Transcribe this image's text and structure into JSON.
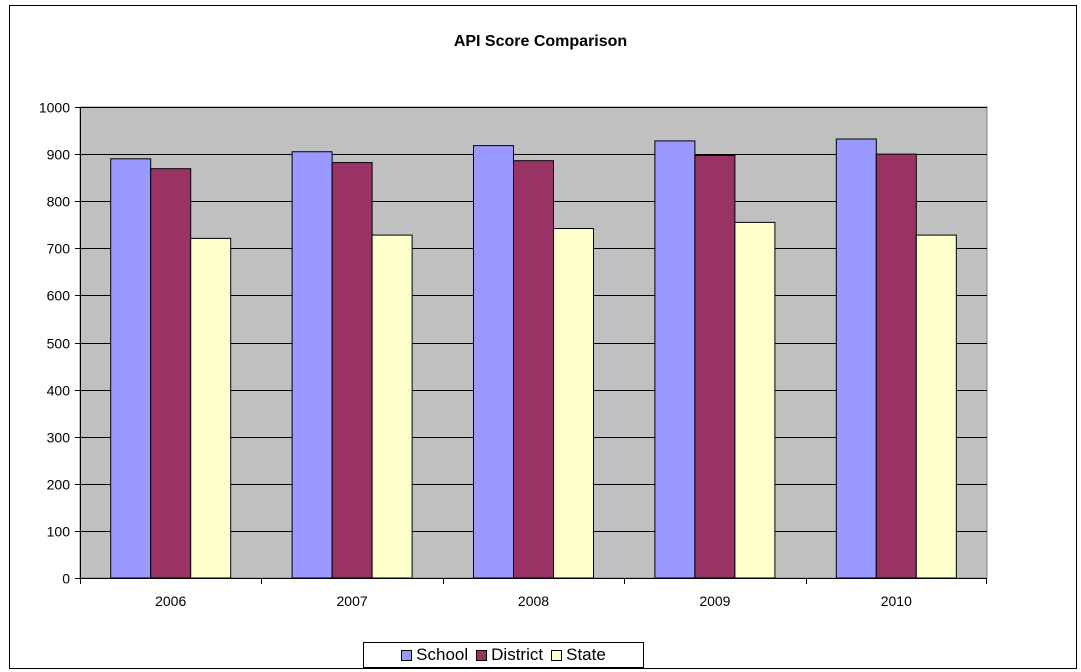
{
  "chart_data": {
    "type": "bar",
    "title": "API Score Comparison",
    "xlabel": "",
    "ylabel": "",
    "categories": [
      "2006",
      "2007",
      "2008",
      "2009",
      "2010"
    ],
    "ylim": [
      0,
      1000
    ],
    "yticks": [
      "0",
      "100",
      "200",
      "300",
      "400",
      "500",
      "600",
      "700",
      "800",
      "900",
      "1000"
    ],
    "grid": true,
    "legend_position": "bottom",
    "plot_background": "#C0C0C0",
    "series": [
      {
        "name": "School",
        "color": "#9999FF",
        "values": [
          890,
          905,
          918,
          928,
          932
        ]
      },
      {
        "name": "District",
        "color": "#993366",
        "values": [
          869,
          882,
          886,
          897,
          900
        ]
      },
      {
        "name": "State",
        "color": "#FFFFCC",
        "values": [
          721,
          728,
          742,
          755,
          728
        ]
      }
    ]
  }
}
